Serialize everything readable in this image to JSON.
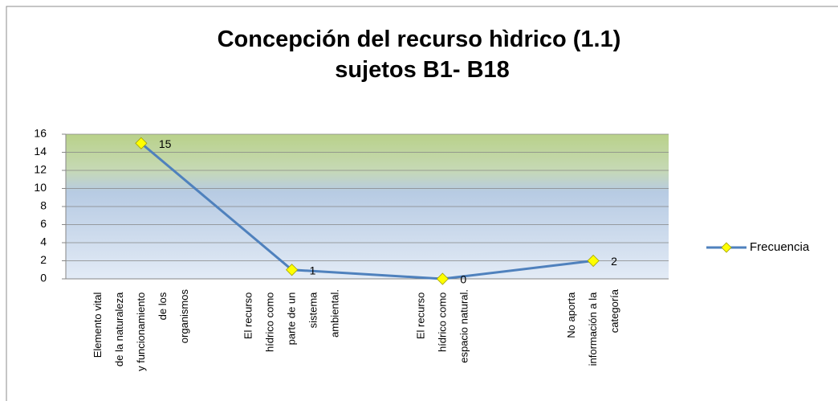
{
  "chart_data": {
    "type": "line",
    "title": "Concepción del recurso hìdrico (1.1) sujetos B1- B18",
    "categories": [
      "Elemento vital de la naturaleza y funcionamiento de los organismos",
      "El recurso hídrico como parte de un sistema ambiental.",
      "El recurso hídrico como espacio natural.",
      "No aporta información a la categoría"
    ],
    "series": [
      {
        "name": "Frecuencia",
        "color": "#4f81bd",
        "values": [
          15,
          1,
          0,
          2
        ]
      }
    ],
    "ylim": [
      0,
      16
    ],
    "yticks": [
      0,
      2,
      4,
      6,
      8,
      10,
      12,
      14,
      16
    ],
    "grid": true,
    "legend": "right"
  }
}
